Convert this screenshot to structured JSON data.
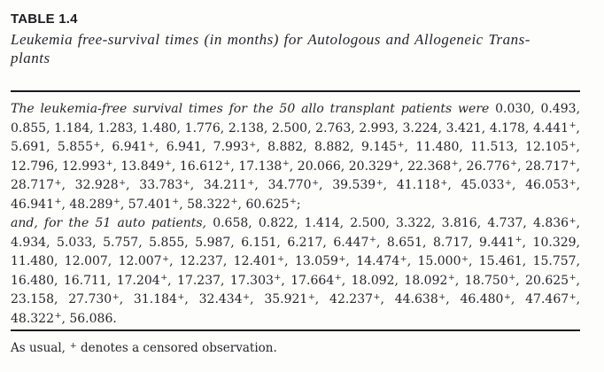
{
  "header": {
    "label": "TABLE 1.4",
    "caption_line1": "Leukemia free-survival times (in months) for Autologous and Allogeneic Trans-",
    "caption_line2": "plants"
  },
  "body": {
    "allo": {
      "lead": "The leukemia-free survival times for the 50 allo transplant patients were",
      "times": "0.030, 0.493, 0.855, 1.184, 1.283, 1.480, 1.776, 2.138, 2.500, 2.763, 2.993, 3.224, 3.421, 4.178, 4.441⁺, 5.691, 5.855⁺, 6.941⁺, 6.941, 7.993⁺, 8.882, 8.882, 9.145⁺, 11.480, 11.513, 12.105⁺, 12.796, 12.993⁺, 13.849⁺, 16.612⁺, 17.138⁺, 20.066, 20.329⁺, 22.368⁺, 26.776⁺, 28.717⁺, 28.717⁺, 32.928⁺, 33.783⁺, 34.211⁺, 34.770⁺, 39.539⁺, 41.118⁺, 45.033⁺, 46.053⁺, 46.941⁺, 48.289⁺, 57.401⁺, 58.322⁺, 60.625⁺;"
    },
    "auto": {
      "lead": "and, for the 51 auto patients,",
      "times": "0.658, 0.822, 1.414, 2.500, 3.322, 3.816, 4.737, 4.836⁺, 4.934, 5.033, 5.757, 5.855, 5.987, 6.151, 6.217, 6.447⁺, 8.651, 8.717, 9.441⁺, 10.329, 11.480, 12.007, 12.007⁺, 12.237, 12.401⁺, 13.059⁺, 14.474⁺, 15.000⁺, 15.461, 15.757, 16.480, 16.711, 17.204⁺, 17.237, 17.303⁺, 17.664⁺, 18.092, 18.092⁺, 18.750⁺, 20.625⁺, 23.158, 27.730⁺, 31.184⁺, 32.434⁺, 35.921⁺, 42.237⁺, 44.638⁺, 46.480⁺, 47.467⁺, 48.322⁺, 56.086."
    }
  },
  "footnote": {
    "text": "As usual, ⁺ denotes a censored observation."
  },
  "colors": {
    "text": "#26262b",
    "rule": "#1b1b1f",
    "background": "#fdfdfc"
  }
}
